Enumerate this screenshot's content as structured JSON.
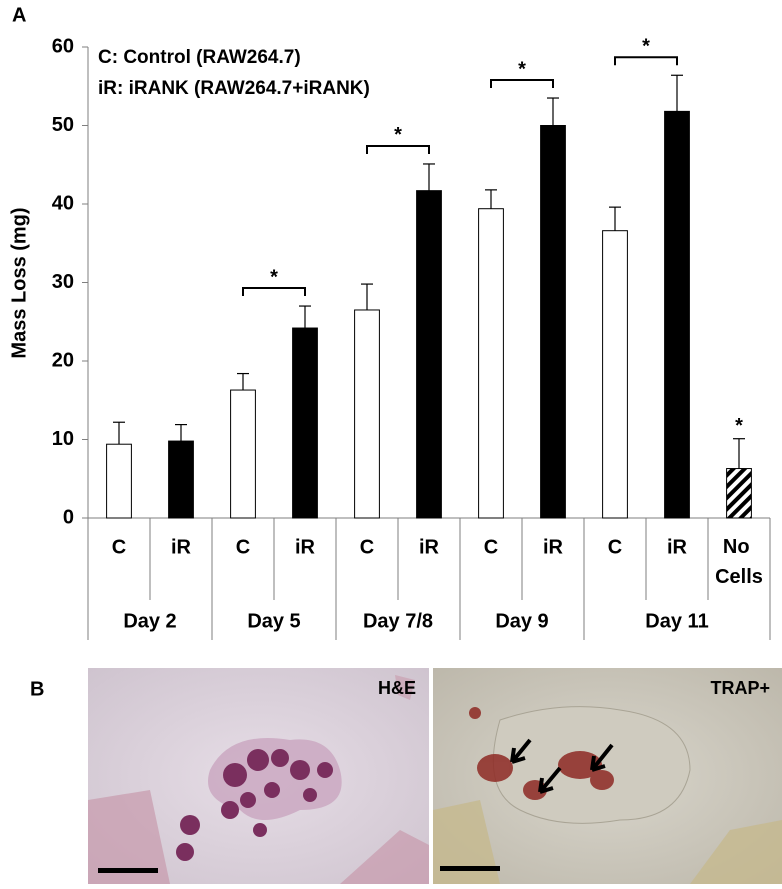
{
  "chart_data": {
    "type": "bar",
    "panel_labels": [
      "A",
      "B"
    ],
    "y_label": "Mass Loss (mg)",
    "legend_text": [
      "C: Control (RAW264.7)",
      "iR: iRANK (RAW264.7+iRANK)"
    ],
    "categories": [
      "C",
      "iR",
      "C",
      "iR",
      "C",
      "iR",
      "C",
      "iR",
      "C",
      "iR",
      "No Cells"
    ],
    "x_groups": [
      "Day 2",
      "Day 2",
      "Day 5",
      "Day 5",
      "Day 7/8",
      "Day 7/8",
      "Day 9",
      "Day 9",
      "Day 11",
      "Day 11",
      "Day 11"
    ],
    "values": [
      9.4,
      9.8,
      16.3,
      24.2,
      26.5,
      41.7,
      39.4,
      50.0,
      36.6,
      51.8,
      6.3
    ],
    "errors": [
      2.8,
      2.1,
      2.1,
      2.8,
      3.3,
      3.4,
      2.4,
      3.5,
      3.0,
      4.6,
      3.8
    ],
    "bar_colors": [
      "#ffffff",
      "#000000",
      "#ffffff",
      "#000000",
      "#ffffff",
      "#000000",
      "#ffffff",
      "#000000",
      "#ffffff",
      "#000000",
      "hatched"
    ],
    "significance": [
      {
        "label": "*",
        "group": "Day 5"
      },
      {
        "label": "*",
        "group": "Day 7/8"
      },
      {
        "label": "*",
        "group": "Day 9"
      },
      {
        "label": "*",
        "group": "Day 11"
      },
      {
        "label": "*",
        "category": "No Cells"
      }
    ],
    "ylim": [
      0,
      60
    ],
    "yticks": [
      0,
      10,
      20,
      30,
      40,
      50,
      60
    ],
    "grid": false,
    "images": [
      {
        "label": "H&E"
      },
      {
        "label": "TRAP+"
      }
    ]
  }
}
